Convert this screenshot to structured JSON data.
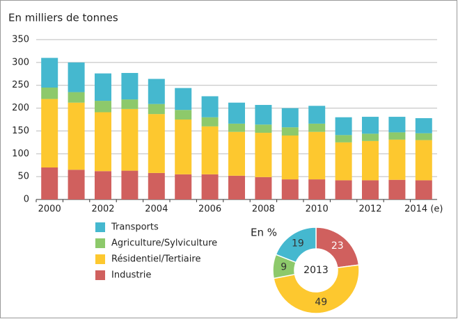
{
  "chart_data": [
    {
      "type": "bar",
      "stacked": true,
      "title": "En milliers de tonnes",
      "categories": [
        "2000",
        null,
        "2002",
        null,
        "2004",
        null,
        "2006",
        null,
        "2008",
        null,
        "2010",
        null,
        "2012",
        null,
        "2014 (e)"
      ],
      "series": [
        {
          "name": "Industrie",
          "color": "#d0605e",
          "values": [
            70,
            65,
            62,
            63,
            58,
            55,
            55,
            52,
            49,
            44,
            44,
            42,
            42,
            43,
            42
          ]
        },
        {
          "name": "Résidentiel/Tertiaire",
          "color": "#fdc82f",
          "values": [
            150,
            147,
            129,
            135,
            129,
            120,
            105,
            96,
            97,
            96,
            104,
            83,
            86,
            88,
            88
          ]
        },
        {
          "name": "Agriculture/Sylviculture",
          "color": "#8dc96b",
          "values": [
            25,
            23,
            25,
            21,
            22,
            21,
            20,
            18,
            18,
            18,
            18,
            16,
            16,
            16,
            15
          ]
        },
        {
          "name": "Transports",
          "color": "#45b8cf",
          "values": [
            65,
            65,
            60,
            58,
            55,
            48,
            46,
            46,
            43,
            42,
            39,
            39,
            37,
            34,
            33
          ]
        }
      ],
      "ylim": [
        0,
        350
      ],
      "yticks": [
        0,
        50,
        100,
        150,
        200,
        250,
        300,
        350
      ],
      "grid": true
    },
    {
      "type": "donut",
      "title": "En %",
      "center_label": "2013",
      "values": [
        23,
        49,
        9,
        19
      ],
      "colors": [
        "#d0605e",
        "#fdc82f",
        "#8dc96b",
        "#45b8cf"
      ],
      "label_colors": [
        "#ffffff",
        "#333333",
        "#333333",
        "#333333"
      ]
    }
  ]
}
